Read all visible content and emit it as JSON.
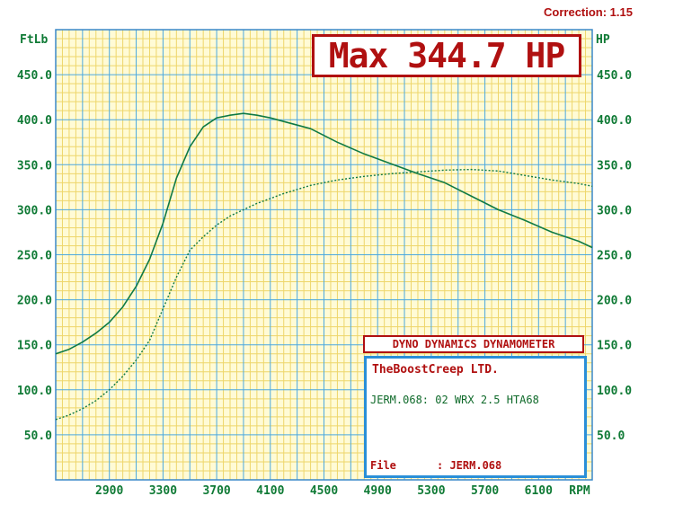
{
  "correction_label": "Correction: 1.15",
  "max_label": "Max 344.7 HP",
  "dyno_banner": "DYNO DYNAMICS DYNAMOMETER",
  "info": {
    "company": "TheBoostCreep LTD.",
    "run": "JERM.068: 02 WRX 2.5 HTA68",
    "file_label": "File",
    "file_value": ": JERM.068"
  },
  "chart_data": {
    "type": "line",
    "left_axis_unit": "FtLb",
    "right_axis_unit": "HP",
    "x_unit": "RPM",
    "xlim": [
      2500,
      6500
    ],
    "ylim": [
      0,
      500
    ],
    "x_ticks": [
      "2900",
      "3300",
      "3700",
      "4100",
      "4500",
      "4900",
      "5300",
      "5700",
      "6100"
    ],
    "y_ticks": [
      "50.0",
      "100.0",
      "150.0",
      "200.0",
      "250.0",
      "300.0",
      "350.0",
      "400.0",
      "450.0"
    ],
    "grid": true,
    "series": [
      {
        "style": "solid",
        "x": [
          2500,
          2600,
          2700,
          2800,
          2900,
          3000,
          3100,
          3200,
          3300,
          3400,
          3500,
          3600,
          3700,
          3800,
          3900,
          4000,
          4100,
          4200,
          4400,
          4600,
          4800,
          5000,
          5200,
          5400,
          5600,
          5800,
          6000,
          6200,
          6400,
          6500
        ],
        "values": [
          140,
          145,
          153,
          163,
          175,
          192,
          215,
          245,
          285,
          335,
          370,
          392,
          402,
          405,
          407,
          405,
          402,
          398,
          390,
          375,
          362,
          351,
          340,
          330,
          315,
          300,
          288,
          275,
          265,
          258
        ]
      },
      {
        "style": "dotted",
        "x": [
          2500,
          2600,
          2700,
          2800,
          2900,
          3000,
          3100,
          3200,
          3300,
          3400,
          3500,
          3600,
          3700,
          3800,
          3900,
          4000,
          4200,
          4400,
          4600,
          4800,
          5000,
          5200,
          5400,
          5600,
          5800,
          6000,
          6200,
          6400,
          6500
        ],
        "values": [
          67,
          72,
          79,
          88,
          100,
          115,
          133,
          155,
          190,
          225,
          255,
          270,
          283,
          293,
          300,
          307,
          318,
          327,
          333,
          337,
          340,
          342,
          344,
          344.7,
          343,
          338,
          333,
          329,
          326
        ]
      }
    ]
  }
}
